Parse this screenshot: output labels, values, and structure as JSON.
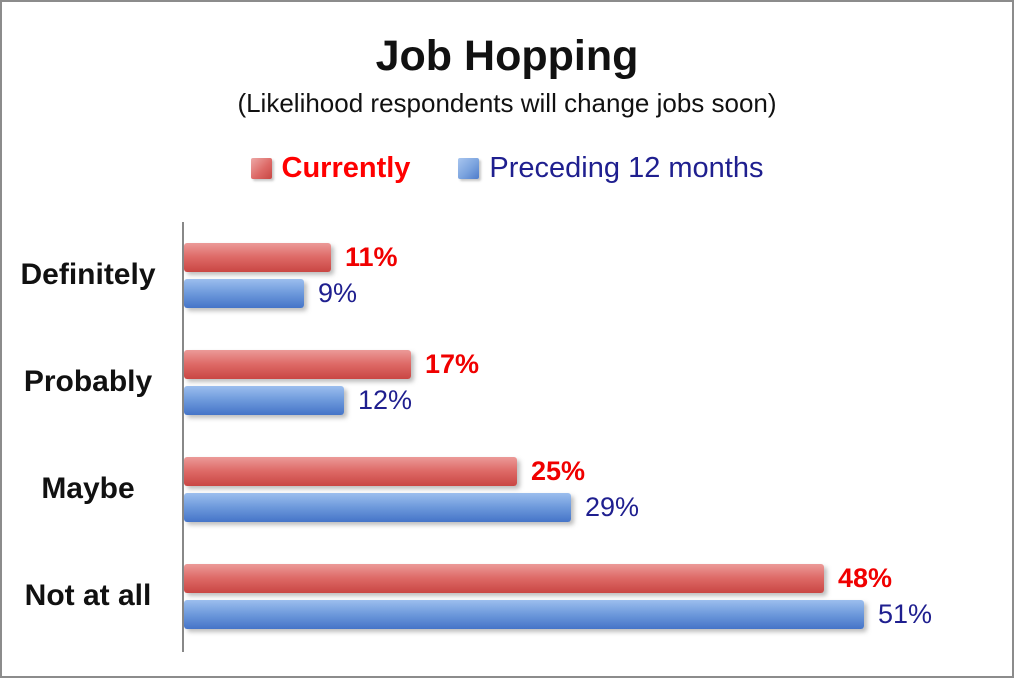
{
  "title": "Job Hopping",
  "subtitle": "(Likelihood respondents will change jobs soon)",
  "legend": {
    "items": [
      {
        "label": "Currently",
        "color": "#ff0000",
        "swatch": "red-gradient"
      },
      {
        "label": "Preceding 12 months",
        "color": "#1f1f8f",
        "swatch": "blue-gradient"
      }
    ],
    "position": "top-center"
  },
  "colors": {
    "currently_bar_top": "#ec9a98",
    "currently_bar_bottom": "#c94643",
    "currently_label": "#f00000",
    "preceding_bar_top": "#9cbeee",
    "preceding_bar_bottom": "#4574c8",
    "preceding_label": "#1f1f8f",
    "axis_line": "#888888",
    "frame_border": "#8c8c8c",
    "title_text": "#111111"
  },
  "chart_data": {
    "type": "bar",
    "orientation": "horizontal",
    "title": "Job Hopping",
    "subtitle": "(Likelihood respondents will change jobs soon)",
    "categories": [
      "Definitely",
      "Probably",
      "Maybe",
      "Not at all"
    ],
    "series": [
      {
        "name": "Currently",
        "values": [
          11,
          17,
          25,
          48
        ]
      },
      {
        "name": "Preceding 12 months",
        "values": [
          9,
          12,
          29,
          51
        ]
      }
    ],
    "value_suffix": "%",
    "xlim": [
      0,
      55
    ],
    "grid": false,
    "data_labels": "outside-end",
    "legend_position": "top"
  }
}
